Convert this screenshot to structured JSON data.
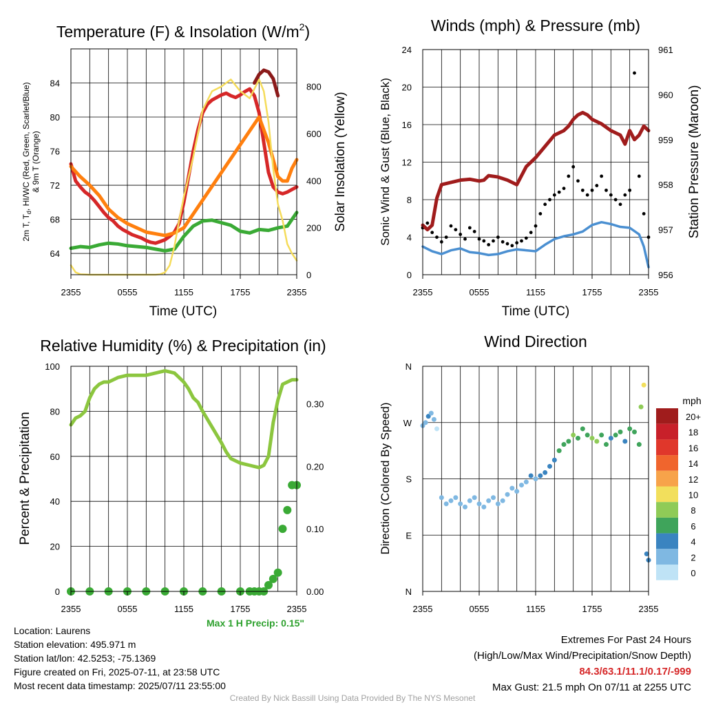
{
  "temp_panel": {
    "title": "Temperature (F) & Insolation (W/m",
    "title_sup": "2",
    "title_close": ")",
    "left_label_1": "2m T, T",
    "left_label_sub": "d",
    "left_label_2": ", HI/WC (Red, Green, Scarlet/Blue)",
    "left_label_3": "& 9m T (Orange)",
    "right_label": "Solar Insolation (Yellow)",
    "x_label": "Time (UTC)"
  },
  "wind_panel": {
    "title": "Winds (mph) & Pressure (mb)",
    "left_label": "Sonic Wind & Gust (Blue, Black)",
    "right_label": "Station Pressure (Maroon)",
    "x_label": "Time (UTC)"
  },
  "rh_panel": {
    "title": "Relative Humidity (%) & Precipitation (in)",
    "left_label": "Percent & Precipitation",
    "max_precip": "Max 1 H Precip: 0.15\""
  },
  "dir_panel": {
    "title": "Wind Direction",
    "left_label": "Direction (Colored By Speed)",
    "legend_title": "mph",
    "legend_labels": [
      "20+",
      "18",
      "16",
      "14",
      "12",
      "10",
      "8",
      "6",
      "4",
      "2",
      "0"
    ],
    "legend_colors": [
      "#a01c1c",
      "#c8202a",
      "#e0372b",
      "#f0652d",
      "#f7a34a",
      "#f2df5c",
      "#8fcb57",
      "#3fa45b",
      "#3a84c0",
      "#7fb8e2",
      "#bfe3f6"
    ]
  },
  "info": {
    "location": "Location: Laurens",
    "elevation": "Station elevation: 495.971 m",
    "latlon": "Station lat/lon: 42.5253; -75.1369",
    "created": "Figure created on Fri, 2025-07-11, at 23:58 UTC",
    "recent": "Most recent data timestamp: 2025/07/11 23:55:00"
  },
  "extremes": {
    "line1": "Extremes For Past 24 Hours",
    "line2": "(High/Low/Max Wind/Precipitation/Snow Depth)",
    "values": "84.3/63.1/11.1/0.17/-999",
    "gust": "Max Gust: 21.5 mph On 07/11 at 2255 UTC"
  },
  "credit": "Created By Nick Bassill Using Data Provided By The NYS Mesonet",
  "chart_data": [
    {
      "type": "line",
      "title": "Temperature (F) & Insolation (W/m2)",
      "xlabel": "Time (UTC)",
      "ylabel": "2m T, Td, HI/WC (Red, Green, Scarlet/Blue) & 9m T (Orange)",
      "y2label": "Solar Insolation (Yellow)",
      "x_ticks": [
        "2355",
        "0555",
        "1155",
        "1755",
        "2355"
      ],
      "xlim": [
        0,
        24
      ],
      "ylim": [
        61.5,
        88
      ],
      "y_ticks": [
        64,
        68,
        72,
        76,
        80,
        84
      ],
      "y2lim": [
        0,
        960
      ],
      "y2_ticks": [
        0,
        200,
        400,
        600,
        800
      ],
      "grid": true,
      "series": [
        {
          "color": "#d62728",
          "x": [
            0,
            0.5,
            1,
            1.5,
            2,
            2.5,
            3,
            3.5,
            4,
            4.5,
            5,
            5.5,
            6,
            6.5,
            7,
            7.5,
            8,
            8.5,
            9,
            9.5,
            10,
            10.5,
            11,
            11.5,
            12,
            12.5,
            13,
            13.5,
            14,
            14.5,
            15,
            15.5,
            16,
            16.5,
            17,
            17.5,
            18,
            18.5,
            19,
            19.5,
            20,
            20.5,
            21,
            21.5,
            22,
            22.5,
            23,
            23.5,
            24
          ],
          "y": [
            74.5,
            72.5,
            71.8,
            71.2,
            70.8,
            70.2,
            69.5,
            68.8,
            68.2,
            67.8,
            67.2,
            66.8,
            66.5,
            66.2,
            66,
            65.8,
            65.5,
            65.3,
            65.2,
            65.4,
            65.6,
            66,
            66.5,
            67.5,
            70,
            73,
            76,
            78.5,
            80.5,
            81.5,
            82,
            82.3,
            82.6,
            82.8,
            82.5,
            82.3,
            82.6,
            83,
            83.3,
            82.5,
            80.5,
            77,
            73.5,
            71.8,
            71.2,
            71,
            71.2,
            71.5,
            71.8
          ]
        },
        {
          "color": "#ff7f0e",
          "x": [
            0,
            1,
            2,
            3,
            4,
            5,
            6,
            7,
            8,
            9,
            10,
            11,
            12,
            20,
            21,
            22,
            22.5,
            23,
            23.5,
            24
          ],
          "y": [
            74.2,
            73,
            72,
            70.8,
            69.2,
            68.2,
            67.5,
            67,
            66.5,
            66.3,
            66.1,
            66.4,
            67,
            80,
            77,
            73,
            72.5,
            72.5,
            74,
            75
          ]
        },
        {
          "color": "#8b1a1a",
          "x": [
            19.5,
            20,
            20.5,
            21,
            21.5,
            22
          ],
          "y": [
            84,
            85,
            85.5,
            85.3,
            84.5,
            82.5
          ]
        },
        {
          "color": "#3aaa35",
          "x": [
            0,
            1,
            2,
            3,
            4,
            5,
            6,
            7,
            8,
            9,
            10,
            11,
            12,
            13,
            14,
            15,
            16,
            17,
            18,
            19,
            20,
            21,
            22,
            23,
            24
          ],
          "y": [
            64.6,
            64.8,
            64.7,
            65,
            65.2,
            65.1,
            64.9,
            64.8,
            64.7,
            64.5,
            64.3,
            64.5,
            66,
            67.2,
            67.8,
            67.9,
            67.6,
            67.3,
            66.6,
            66.4,
            66.8,
            66.7,
            67,
            67.2,
            68.8
          ]
        },
        {
          "color": "#f5dc5a",
          "axis": "right",
          "x": [
            0,
            0.5,
            1,
            2,
            3,
            4,
            5,
            6,
            7,
            8,
            9,
            9.5,
            10,
            10.5,
            11,
            11.5,
            12,
            13,
            14,
            15,
            16,
            17,
            18,
            19,
            20,
            20.5,
            21,
            21.5,
            22,
            22.5,
            23,
            23.5,
            24
          ],
          "y": [
            40,
            10,
            2,
            0,
            0,
            0,
            0,
            0,
            0,
            0,
            0,
            2,
            10,
            40,
            120,
            230,
            330,
            500,
            700,
            780,
            800,
            830,
            780,
            750,
            830,
            780,
            650,
            450,
            300,
            230,
            130,
            90,
            60
          ]
        }
      ]
    },
    {
      "type": "line",
      "title": "Winds (mph) & Pressure (mb)",
      "xlabel": "Time (UTC)",
      "ylabel": "Sonic Wind & Gust (Blue, Black)",
      "y2label": "Station Pressure (Maroon)",
      "x_ticks": [
        "2355",
        "0555",
        "1155",
        "1755",
        "2355"
      ],
      "xlim": [
        0,
        24
      ],
      "ylim": [
        0,
        24
      ],
      "y_ticks": [
        0,
        4,
        8,
        12,
        16,
        20,
        24
      ],
      "y2lim": [
        956,
        961
      ],
      "y2_ticks": [
        956,
        957,
        958,
        959,
        960,
        961
      ],
      "grid": true,
      "series": [
        {
          "color": "#4a8fd1",
          "type": "line",
          "x": [
            0,
            1,
            2,
            3,
            4,
            5,
            6,
            7,
            8,
            9,
            10,
            11,
            12,
            13,
            14,
            15,
            16,
            17,
            18,
            19,
            20,
            21,
            22,
            23,
            23.5,
            24
          ],
          "y": [
            3,
            2.5,
            2.2,
            2.6,
            2.8,
            2.4,
            2.3,
            2.1,
            2.2,
            2.5,
            2.7,
            2.6,
            2.5,
            3.2,
            3.8,
            4.1,
            4.3,
            4.6,
            5.3,
            5.6,
            5.4,
            5.1,
            5,
            4.3,
            3,
            0.8
          ]
        },
        {
          "color": "#000000",
          "type": "scatter",
          "x": [
            0,
            0.5,
            1,
            1.5,
            2,
            2.5,
            3,
            3.5,
            4,
            4.5,
            5,
            5.5,
            6,
            6.5,
            7,
            7.5,
            8,
            8.5,
            9,
            9.5,
            10,
            10.5,
            11,
            11.5,
            12,
            12.5,
            13,
            13.5,
            14,
            14.5,
            15,
            15.5,
            16,
            16.5,
            17,
            17.5,
            18,
            18.5,
            19,
            19.5,
            20,
            20.5,
            21,
            21.5,
            22,
            22.5,
            23,
            23.5,
            24
          ],
          "y": [
            5,
            5.5,
            4.5,
            4,
            3.5,
            4,
            5.2,
            4.8,
            4.3,
            3.8,
            5,
            4.6,
            3.8,
            3.6,
            3.2,
            3.6,
            4,
            3.5,
            3.3,
            3.1,
            3.4,
            3.6,
            3.9,
            4.5,
            5.2,
            6.5,
            7.5,
            8,
            8.5,
            8.8,
            9.2,
            10.5,
            11.5,
            10,
            9,
            8.5,
            9,
            9.5,
            10.5,
            9,
            8.5,
            8,
            7.5,
            8.5,
            9,
            21.5,
            10.5,
            6.5,
            4
          ]
        },
        {
          "color": "#a01c1c",
          "axis": "right",
          "type": "line",
          "x": [
            0,
            0.5,
            1,
            1.5,
            2,
            3,
            4,
            5,
            6,
            6.5,
            7,
            8,
            9,
            10,
            10.5,
            11,
            12,
            13,
            14,
            15,
            15.5,
            16,
            16.5,
            17,
            17.5,
            18,
            19,
            20,
            21,
            21.5,
            22,
            22.5,
            23,
            23.5,
            24
          ],
          "y": [
            957.1,
            957,
            957.1,
            957.7,
            958,
            958.05,
            958.1,
            958.12,
            958.08,
            958.1,
            958.2,
            958.17,
            958.1,
            958,
            958.2,
            958.4,
            958.6,
            958.85,
            959.1,
            959.2,
            959.3,
            959.45,
            959.55,
            959.6,
            959.55,
            959.45,
            959.35,
            959.2,
            959.1,
            958.9,
            959.2,
            959,
            959.1,
            959.3,
            959.2
          ]
        }
      ]
    },
    {
      "type": "line",
      "title": "Relative Humidity (%) & Precipitation (in)",
      "ylabel": "Percent & Precipitation",
      "x_ticks": [
        "2355",
        "0555",
        "1155",
        "1755",
        "2355"
      ],
      "xlim": [
        0,
        24
      ],
      "ylim": [
        0,
        100
      ],
      "y_ticks": [
        0,
        20,
        40,
        60,
        80,
        100
      ],
      "y2lim": [
        0,
        0.36
      ],
      "y2_ticks": [
        0.0,
        0.1,
        0.2,
        0.3
      ],
      "grid": true,
      "series": [
        {
          "color": "#8cc63f",
          "type": "line",
          "x": [
            0,
            0.5,
            1,
            1.5,
            2,
            2.5,
            3,
            3.5,
            4,
            5,
            6,
            7,
            8,
            9,
            10,
            11,
            12,
            12.5,
            13,
            13.5,
            14,
            15,
            16,
            16.5,
            17,
            18,
            19,
            20,
            20.5,
            21,
            21.5,
            22,
            22.5,
            23,
            23.5,
            24
          ],
          "y": [
            74,
            77,
            78,
            80,
            86,
            90,
            92,
            93,
            93,
            95,
            96,
            96,
            96,
            97,
            98,
            97,
            93,
            90,
            86,
            84,
            80,
            73,
            66,
            62,
            59,
            57,
            56,
            55,
            56,
            60,
            75,
            85,
            92,
            93,
            94,
            94
          ]
        },
        {
          "color": "#3aaa35",
          "type": "scatter",
          "axis": "right",
          "x": [
            0,
            2,
            4,
            6,
            8,
            10,
            12,
            14,
            16,
            18,
            19,
            19.5,
            20,
            20.5,
            21,
            21.5,
            22,
            22.5,
            23,
            23.5,
            24
          ],
          "y": [
            0,
            0,
            0,
            0,
            0,
            0,
            0,
            0,
            0,
            0,
            0,
            0,
            0,
            0,
            0.01,
            0.02,
            0.03,
            0.1,
            0.13,
            0.17,
            0.17
          ]
        }
      ]
    },
    {
      "type": "scatter",
      "title": "Wind Direction",
      "ylabel": "Direction (Colored By Speed)",
      "x_ticks": [
        "2355",
        "0555",
        "1155",
        "1755",
        "2355"
      ],
      "xlim": [
        0,
        24
      ],
      "y_ticks": [
        "N",
        "E",
        "S",
        "W",
        "N"
      ],
      "ylim": [
        0,
        360
      ],
      "color_scale": "mph",
      "grid": true,
      "x": [
        0,
        0.3,
        0.6,
        0.9,
        1.2,
        1.5,
        2,
        2.5,
        3,
        3.5,
        4,
        4.5,
        5,
        5.5,
        6,
        6.5,
        7,
        7.5,
        8,
        8.5,
        9,
        9.5,
        10,
        10.5,
        11,
        11.5,
        12,
        12.5,
        13,
        13.5,
        14,
        14.5,
        15,
        15.5,
        16,
        16.5,
        17,
        17.5,
        18,
        18.5,
        19,
        19.5,
        20,
        20.5,
        21,
        21.5,
        22,
        22.5,
        23,
        23.2,
        23.5,
        23.8,
        24
      ],
      "y": [
        265,
        270,
        280,
        285,
        275,
        260,
        150,
        140,
        145,
        150,
        140,
        135,
        145,
        150,
        140,
        135,
        145,
        150,
        140,
        145,
        155,
        165,
        160,
        170,
        175,
        185,
        180,
        185,
        190,
        200,
        210,
        225,
        235,
        240,
        250,
        245,
        260,
        250,
        245,
        240,
        250,
        235,
        245,
        250,
        255,
        240,
        260,
        255,
        235,
        295,
        330,
        60,
        50
      ],
      "speed": [
        2,
        3,
        4,
        3,
        2,
        1,
        2,
        3,
        3,
        3,
        2,
        3,
        2,
        3,
        3,
        2,
        2,
        3,
        3,
        2,
        3,
        2,
        3,
        3,
        3,
        4,
        3,
        4,
        4,
        4,
        5,
        6,
        6,
        7,
        8,
        7,
        6,
        6,
        8,
        9,
        7,
        6,
        5,
        6,
        6,
        5,
        7,
        6,
        7,
        8,
        10,
        4,
        4
      ]
    }
  ]
}
